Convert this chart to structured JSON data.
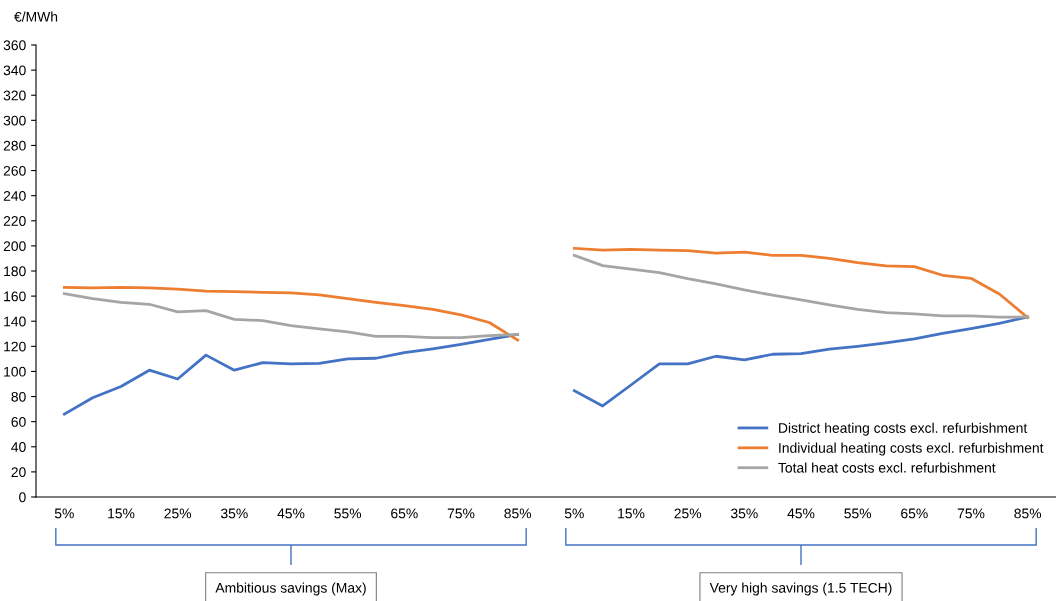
{
  "chart_data": {
    "type": "line",
    "ylabel": "€/MWh",
    "categories": [
      "5%",
      null,
      "15%",
      null,
      "25%",
      null,
      "35%",
      null,
      "45%",
      null,
      "55%",
      null,
      "65%",
      null,
      "75%",
      null,
      "85%",
      null,
      "5%",
      null,
      "15%",
      null,
      "25%",
      null,
      "35%",
      null,
      "45%",
      null,
      "55%",
      null,
      "65%",
      null,
      "75%",
      null,
      "85%"
    ],
    "series": [
      {
        "name": "District heating costs excl. refurbishment",
        "color": "#4472c4",
        "values": [
          66,
          79,
          88,
          101,
          94,
          113,
          101,
          107,
          106,
          106.5,
          110,
          110.5,
          115,
          118,
          121.5,
          125.5,
          129.5,
          null,
          84.7,
          72.5,
          89.2,
          106,
          106,
          112.1,
          109.2,
          113.7,
          114.2,
          117.7,
          120,
          122.7,
          125.9,
          130.4,
          134.1,
          138.3,
          143.4
        ]
      },
      {
        "name": "Individual heating costs excl. refurbishment",
        "color": "#ed7d31",
        "values": [
          167,
          166.5,
          167,
          166.5,
          165.5,
          164,
          163.5,
          163,
          162.5,
          161,
          158,
          155,
          152.5,
          149.5,
          145,
          139,
          125,
          null,
          198.1,
          196.7,
          197.3,
          196.7,
          196.2,
          194.3,
          195.1,
          192.5,
          192.5,
          190.1,
          186.7,
          184,
          183.5,
          176.6,
          174.2,
          161.7,
          142.9
        ]
      },
      {
        "name": "Total heat costs excl. refurbishment",
        "color": "#a5a5a5",
        "values": [
          162,
          158,
          155,
          153.5,
          147.5,
          148.5,
          141.5,
          140.5,
          136.5,
          134,
          131.5,
          128,
          128,
          127,
          127,
          128.5,
          129.5,
          null,
          192.5,
          184.3,
          181.4,
          178.7,
          173.9,
          169.7,
          164.9,
          160.7,
          157,
          153,
          149.5,
          146.9,
          145.8,
          144.2,
          144.2,
          143.2,
          143.4
        ]
      }
    ],
    "ylim": [
      0,
      360
    ],
    "yticks": [
      0,
      20,
      40,
      60,
      80,
      100,
      120,
      140,
      160,
      180,
      200,
      220,
      240,
      260,
      280,
      300,
      320,
      340,
      360
    ],
    "grid": false,
    "legend": "bottom right",
    "marker": "none",
    "line_style": "solid",
    "annotations": [
      "Ambitious savings (Max)",
      "Very high savings (1.5 TECH)"
    ]
  }
}
